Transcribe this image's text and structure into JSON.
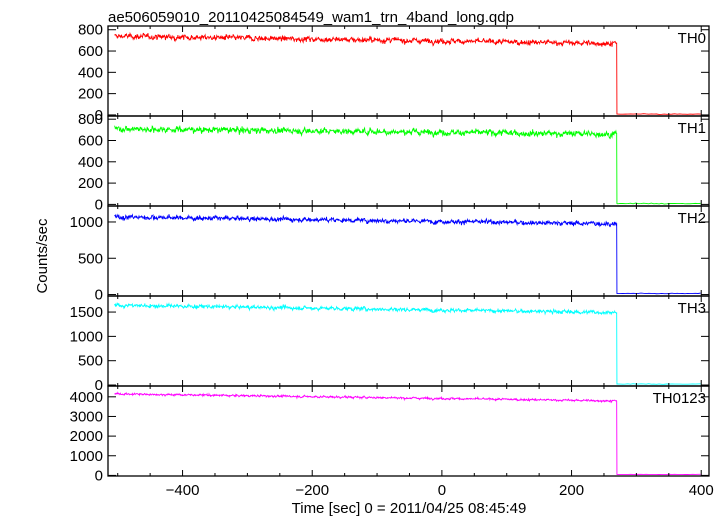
{
  "chart_data": {
    "type": "line",
    "title": "ae506059010_20110425084549_wam1_trn_4band_long.qdp",
    "xlabel": "Time [sec] 0 = 2011/04/25 08:45:49",
    "ylabel": "Counts/sec",
    "xlim": [
      -515,
      412
    ],
    "xticks": [
      -400,
      -200,
      0,
      200,
      400
    ],
    "drop_time": 270,
    "data_start": -505,
    "data_end": 402,
    "grid": false,
    "panels": [
      {
        "name": "TH0",
        "color": "#ff0000",
        "ylim": [
          -10,
          835
        ],
        "yticks": [
          0,
          200,
          400,
          600,
          800
        ],
        "start_level": 740,
        "end_level": 670,
        "noise": 22,
        "post_drop_level": 8
      },
      {
        "name": "TH1",
        "color": "#00ff00",
        "ylim": [
          -15,
          830
        ],
        "yticks": [
          0,
          200,
          400,
          600,
          800
        ],
        "start_level": 710,
        "end_level": 660,
        "noise": 25,
        "post_drop_level": 8
      },
      {
        "name": "TH2",
        "color": "#0000ff",
        "ylim": [
          -20,
          1220
        ],
        "yticks": [
          0,
          500,
          1000
        ],
        "start_level": 1070,
        "end_level": 975,
        "noise": 28,
        "post_drop_level": 15
      },
      {
        "name": "TH3",
        "color": "#00ffff",
        "ylim": [
          -20,
          1830
        ],
        "yticks": [
          0,
          500,
          1000,
          1500
        ],
        "start_level": 1640,
        "end_level": 1490,
        "noise": 35,
        "post_drop_level": 20
      },
      {
        "name": "TH0123",
        "color": "#ff00ff",
        "ylim": [
          -30,
          4550
        ],
        "yticks": [
          0,
          1000,
          2000,
          3000,
          4000
        ],
        "start_level": 4150,
        "end_level": 3790,
        "noise": 45,
        "post_drop_level": 50
      }
    ]
  }
}
